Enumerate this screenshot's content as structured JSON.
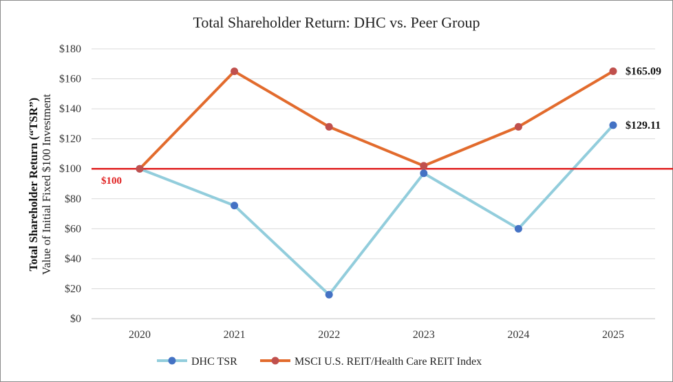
{
  "chart_data": {
    "type": "line",
    "title": "Total Shareholder Return: DHC vs. Peer Group",
    "ylabel_bold": "Total Shareholder Return (“TSR”)",
    "ylabel": "Value of Initial Fixed $100 Investment",
    "categories": [
      "2020",
      "2021",
      "2022",
      "2023",
      "2024",
      "2025"
    ],
    "ylim": [
      0,
      180
    ],
    "yticks": [
      0,
      20,
      40,
      60,
      80,
      100,
      120,
      140,
      160,
      180
    ],
    "ytick_labels": [
      "$0",
      "$20",
      "$40",
      "$60",
      "$80",
      "$100",
      "$120",
      "$140",
      "$160",
      "$180"
    ],
    "grid": true,
    "reference_line": {
      "value": 100,
      "label": "$100",
      "color": "#e02020"
    },
    "series": [
      {
        "name": "DHC TSR",
        "values": [
          100,
          75.5,
          16,
          97,
          60,
          129.11
        ],
        "line_color": "#92cddc",
        "marker_color": "#4472c4",
        "end_label": "$129.11"
      },
      {
        "name": "MSCI U.S. REIT/Health Care REIT Index",
        "values": [
          100,
          165,
          128,
          102,
          128,
          165.09
        ],
        "line_color": "#e26b2d",
        "marker_color": "#c0504d",
        "end_label": "$165.09"
      }
    ],
    "legend_position": "bottom"
  }
}
